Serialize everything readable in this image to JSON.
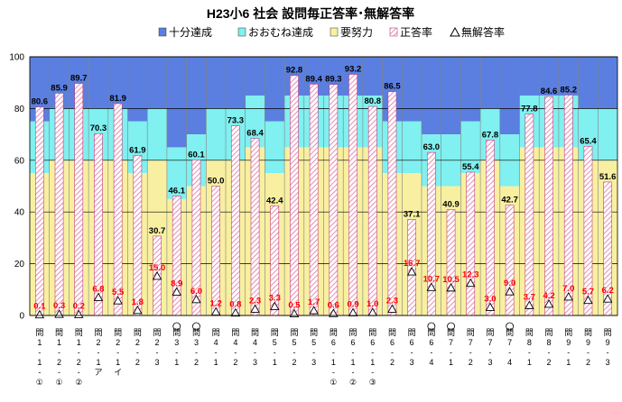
{
  "chart_data": {
    "type": "bar",
    "title": "H23小6 社会  設問毎正答率･無解答率",
    "legend": [
      {
        "label": "十分達成",
        "color": "#5a7fe0",
        "kind": "band"
      },
      {
        "label": "おおむね達成",
        "color": "#80f0f0",
        "kind": "band"
      },
      {
        "label": "要努力",
        "color": "#f8f0a0",
        "kind": "band"
      },
      {
        "label": "正答率",
        "color": "#e8a0b8",
        "kind": "bar"
      },
      {
        "label": "無解答率",
        "color": "#000000",
        "kind": "marker"
      }
    ],
    "ylim": [
      0,
      100
    ],
    "yticks": [
      "0",
      "20",
      "40",
      "60",
      "80",
      "100"
    ],
    "grid": true,
    "legend_position": "top",
    "categories": [
      {
        "lines": [
          "問",
          "1",
          "-",
          "1",
          "-",
          "①"
        ],
        "circle": false
      },
      {
        "lines": [
          "問",
          "1",
          "-",
          "2",
          "-",
          "①"
        ],
        "circle": false
      },
      {
        "lines": [
          "問",
          "1",
          "-",
          "2",
          "-",
          "②"
        ],
        "circle": false
      },
      {
        "lines": [
          "問",
          "2",
          "-",
          "1",
          "ア"
        ],
        "circle": false
      },
      {
        "lines": [
          "問",
          "2",
          "-",
          "1",
          "イ"
        ],
        "circle": false
      },
      {
        "lines": [
          "問",
          "2",
          "-",
          "2"
        ],
        "circle": false
      },
      {
        "lines": [
          "問",
          "2",
          "-",
          "3"
        ],
        "circle": false
      },
      {
        "lines": [
          "問",
          "3",
          "-",
          "1"
        ],
        "circle": true
      },
      {
        "lines": [
          "問",
          "3",
          "-",
          "2"
        ],
        "circle": true
      },
      {
        "lines": [
          "問",
          "4",
          "-",
          "1"
        ],
        "circle": false
      },
      {
        "lines": [
          "問",
          "4",
          "-",
          "2"
        ],
        "circle": false
      },
      {
        "lines": [
          "問",
          "4",
          "-",
          "3"
        ],
        "circle": false
      },
      {
        "lines": [
          "問",
          "5",
          "-",
          "1"
        ],
        "circle": false
      },
      {
        "lines": [
          "問",
          "5",
          "-",
          "2"
        ],
        "circle": false
      },
      {
        "lines": [
          "問",
          "5",
          "-",
          "3"
        ],
        "circle": false
      },
      {
        "lines": [
          "問",
          "6",
          "-",
          "1",
          "-",
          "①"
        ],
        "circle": false
      },
      {
        "lines": [
          "問",
          "6",
          "-",
          "1",
          "-",
          "②"
        ],
        "circle": false
      },
      {
        "lines": [
          "問",
          "6",
          "-",
          "1",
          "-",
          "③"
        ],
        "circle": false
      },
      {
        "lines": [
          "問",
          "6",
          "-",
          "2"
        ],
        "circle": false
      },
      {
        "lines": [
          "問",
          "6",
          "-",
          "3"
        ],
        "circle": false
      },
      {
        "lines": [
          "問",
          "6",
          "-",
          "4"
        ],
        "circle": true
      },
      {
        "lines": [
          "問",
          "7",
          "-",
          "1"
        ],
        "circle": true
      },
      {
        "lines": [
          "問",
          "7",
          "-",
          "2"
        ],
        "circle": false
      },
      {
        "lines": [
          "問",
          "7",
          "-",
          "3"
        ],
        "circle": false
      },
      {
        "lines": [
          "問",
          "7",
          "-",
          "4"
        ],
        "circle": true
      },
      {
        "lines": [
          "問",
          "8",
          "-",
          "1"
        ],
        "circle": false
      },
      {
        "lines": [
          "問",
          "8",
          "-",
          "2"
        ],
        "circle": false
      },
      {
        "lines": [
          "問",
          "9",
          "-",
          "1"
        ],
        "circle": false
      },
      {
        "lines": [
          "問",
          "9",
          "-",
          "2"
        ],
        "circle": false
      },
      {
        "lines": [
          "問",
          "9",
          "-",
          "3"
        ],
        "circle": false
      }
    ],
    "bands": [
      {
        "low": 55,
        "high": 75
      },
      {
        "low": 60,
        "high": 80
      },
      {
        "low": 60,
        "high": 80
      },
      {
        "low": 60,
        "high": 80
      },
      {
        "low": 60,
        "high": 80
      },
      {
        "low": 55,
        "high": 75
      },
      {
        "low": 60,
        "high": 80
      },
      {
        "low": 45,
        "high": 65
      },
      {
        "low": 50,
        "high": 70
      },
      {
        "low": 60,
        "high": 80
      },
      {
        "low": 60,
        "high": 80
      },
      {
        "low": 65,
        "high": 85
      },
      {
        "low": 55,
        "high": 75
      },
      {
        "low": 65,
        "high": 85
      },
      {
        "low": 65,
        "high": 85
      },
      {
        "low": 65,
        "high": 85
      },
      {
        "low": 65,
        "high": 85
      },
      {
        "low": 65,
        "high": 85
      },
      {
        "low": 55,
        "high": 75
      },
      {
        "low": 55,
        "high": 75
      },
      {
        "low": 50,
        "high": 70
      },
      {
        "low": 50,
        "high": 70
      },
      {
        "low": 55,
        "high": 75
      },
      {
        "low": 60,
        "high": 80
      },
      {
        "low": 50,
        "high": 70
      },
      {
        "low": 65,
        "high": 85
      },
      {
        "low": 65,
        "high": 85
      },
      {
        "low": 65,
        "high": 85
      },
      {
        "low": 60,
        "high": 80
      },
      {
        "low": 60,
        "high": 80
      }
    ],
    "series": [
      {
        "name": "正答率",
        "values": [
          80.6,
          85.9,
          89.7,
          70.3,
          81.9,
          61.9,
          30.7,
          46.1,
          60.1,
          50.0,
          73.3,
          68.4,
          42.4,
          92.8,
          89.4,
          89.3,
          93.2,
          80.8,
          86.5,
          37.1,
          63.0,
          40.9,
          55.4,
          67.8,
          42.7,
          77.8,
          84.6,
          85.2,
          65.4,
          51.6
        ],
        "labels": [
          "80.6",
          "85.9",
          "89.7",
          "70.3",
          "81.9",
          "61.9",
          "30.7",
          "46.1",
          "60.1",
          "50.0",
          "73.3",
          "68.4",
          "42.4",
          "92.8",
          "89.4",
          "89.3",
          "93.2",
          "80.8",
          "86.5",
          "37.1",
          "63.0",
          "40.9",
          "55.4",
          "67.8",
          "42.7",
          "77.8",
          "84.6",
          "85.2",
          "65.4",
          "51.6"
        ]
      },
      {
        "name": "無解答率",
        "values": [
          0.1,
          0.3,
          0.2,
          6.8,
          5.5,
          1.8,
          15.0,
          8.9,
          6.0,
          1.2,
          0.8,
          2.3,
          3.3,
          0.5,
          1.7,
          0.6,
          0.9,
          1.0,
          2.3,
          16.7,
          10.7,
          10.5,
          12.3,
          3.0,
          9.0,
          3.7,
          4.2,
          7.0,
          5.7,
          6.2
        ],
        "labels": [
          "0.1",
          "0.3",
          "0.2",
          "6.8",
          "5.5",
          "1.8",
          "15.0",
          "8.9",
          "6.0",
          "1.2",
          "0.8",
          "2.3",
          "3.3",
          "0.5",
          "1.7",
          "0.6",
          "0.9",
          "1.0",
          "2.3",
          "16.7",
          "10.7",
          "10.5",
          "12.3",
          "3.0",
          "9.0",
          "3.7",
          "4.2",
          "7.0",
          "5.7",
          "6.2"
        ]
      }
    ]
  }
}
